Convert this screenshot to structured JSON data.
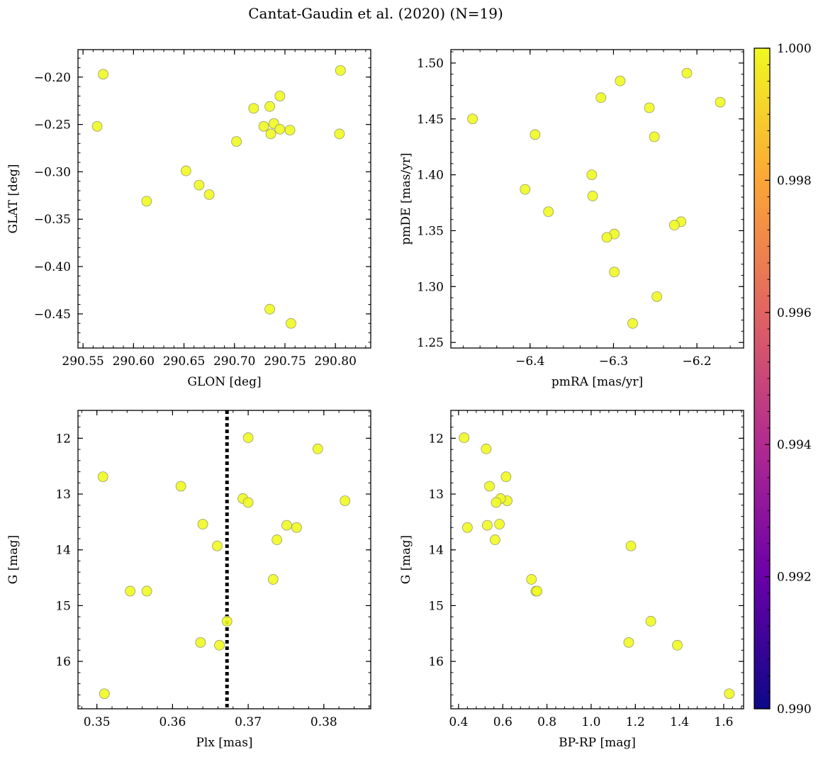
{
  "figure": {
    "title": "Cantat-Gaudin et al. (2020) (N=19)"
  },
  "colorbar": {
    "min": 0.99,
    "max": 1.0,
    "ticks": [
      "0.990",
      "0.992",
      "0.994",
      "0.996",
      "0.998",
      "1.000"
    ],
    "tick_values": [
      0.99,
      0.992,
      0.994,
      0.996,
      0.998,
      1.0
    ],
    "colormap": "plasma",
    "colors": [
      "#0d0887",
      "#6a00a8",
      "#b12a90",
      "#e16462",
      "#fca636",
      "#f0f921"
    ]
  },
  "marker": {
    "fill": "#f0f921",
    "edge": "#9a9a6a"
  },
  "chart_data": [
    {
      "type": "scatter",
      "id": "p1",
      "xlabel": "GLON [deg]",
      "ylabel": "GLAT [deg]",
      "xlim": [
        290.545,
        290.835
      ],
      "ylim": [
        -0.486,
        -0.171
      ],
      "y_inverted": false,
      "xticks": [
        290.55,
        290.6,
        290.65,
        290.7,
        290.75,
        290.8
      ],
      "xticklabels": [
        "290.55",
        "290.60",
        "290.65",
        "290.70",
        "290.75",
        "290.80"
      ],
      "yticks": [
        -0.2,
        -0.25,
        -0.3,
        -0.35,
        -0.4,
        -0.45
      ],
      "yticklabels": [
        "−0.20",
        "−0.25",
        "−0.30",
        "−0.35",
        "−0.40",
        "−0.45"
      ],
      "x": [
        290.57,
        290.564,
        290.805,
        290.804,
        290.745,
        290.719,
        290.735,
        290.729,
        290.739,
        290.745,
        290.755,
        290.736,
        290.702,
        290.652,
        290.665,
        290.675,
        290.613,
        290.735,
        290.756
      ],
      "y": [
        -0.197,
        -0.252,
        -0.193,
        -0.26,
        -0.22,
        -0.233,
        -0.231,
        -0.252,
        -0.249,
        -0.255,
        -0.256,
        -0.26,
        -0.268,
        -0.299,
        -0.314,
        -0.324,
        -0.331,
        -0.445,
        -0.46
      ]
    },
    {
      "type": "scatter",
      "id": "p2",
      "xlabel": "pmRA [mas/yr]",
      "ylabel": "pmDE [mas/yr]",
      "xlim": [
        -6.495,
        -6.144
      ],
      "ylim": [
        1.245,
        1.512
      ],
      "y_inverted": false,
      "xticks": [
        -6.4,
        -6.3,
        -6.2
      ],
      "xticklabels": [
        "−6.4",
        "−6.3",
        "−6.2"
      ],
      "yticks": [
        1.25,
        1.3,
        1.35,
        1.4,
        1.45,
        1.5
      ],
      "yticklabels": [
        "1.25",
        "1.30",
        "1.35",
        "1.40",
        "1.45",
        "1.50"
      ],
      "x": [
        -6.469,
        -6.394,
        -6.212,
        -6.172,
        -6.292,
        -6.315,
        -6.257,
        -6.251,
        -6.326,
        -6.406,
        -6.325,
        -6.378,
        -6.219,
        -6.227,
        -6.299,
        -6.308,
        -6.299,
        -6.248,
        -6.277
      ],
      "y": [
        1.45,
        1.436,
        1.491,
        1.465,
        1.484,
        1.469,
        1.46,
        1.434,
        1.4,
        1.387,
        1.381,
        1.367,
        1.358,
        1.355,
        1.347,
        1.344,
        1.313,
        1.291,
        1.267
      ]
    },
    {
      "type": "scatter",
      "id": "p3",
      "xlabel": "Plx [mas]",
      "ylabel": "G [mag]",
      "xlim": [
        0.3475,
        0.3862
      ],
      "ylim": [
        16.85,
        11.5
      ],
      "y_inverted": true,
      "vline": 0.3672,
      "xticks": [
        0.35,
        0.36,
        0.37,
        0.38
      ],
      "xticklabels": [
        "0.35",
        "0.36",
        "0.37",
        "0.38"
      ],
      "yticks": [
        12,
        13,
        14,
        15,
        16
      ],
      "yticklabels": [
        "12",
        "13",
        "14",
        "15",
        "16"
      ],
      "x": [
        0.37,
        0.3792,
        0.3508,
        0.3611,
        0.3828,
        0.3693,
        0.37,
        0.364,
        0.3751,
        0.3764,
        0.3659,
        0.3738,
        0.3733,
        0.3544,
        0.3566,
        0.3672,
        0.3637,
        0.3662,
        0.351
      ],
      "y": [
        11.99,
        12.19,
        12.69,
        12.86,
        13.12,
        13.08,
        13.15,
        13.54,
        13.56,
        13.6,
        13.93,
        13.82,
        14.53,
        14.74,
        14.74,
        15.28,
        15.66,
        15.71,
        16.58
      ]
    },
    {
      "type": "scatter",
      "id": "p4",
      "xlabel": "BP-RP [mag]",
      "ylabel": "G [mag]",
      "xlim": [
        0.365,
        1.69
      ],
      "ylim": [
        16.85,
        11.5
      ],
      "y_inverted": true,
      "xticks": [
        0.4,
        0.6,
        0.8,
        1.0,
        1.2,
        1.4,
        1.6
      ],
      "xticklabels": [
        "0.4",
        "0.6",
        "0.8",
        "1.0",
        "1.2",
        "1.4",
        "1.6"
      ],
      "yticks": [
        12,
        13,
        14,
        15,
        16
      ],
      "yticklabels": [
        "12",
        "13",
        "14",
        "15",
        "16"
      ],
      "x": [
        0.425,
        0.525,
        0.615,
        0.54,
        0.62,
        0.59,
        0.57,
        0.53,
        0.585,
        0.44,
        0.565,
        1.18,
        0.73,
        0.75,
        0.755,
        1.27,
        1.17,
        1.39,
        1.625
      ],
      "y": [
        11.99,
        12.19,
        12.69,
        12.86,
        13.12,
        13.08,
        13.15,
        13.56,
        13.54,
        13.6,
        13.82,
        13.93,
        14.53,
        14.74,
        14.74,
        15.28,
        15.66,
        15.71,
        16.58
      ]
    }
  ]
}
